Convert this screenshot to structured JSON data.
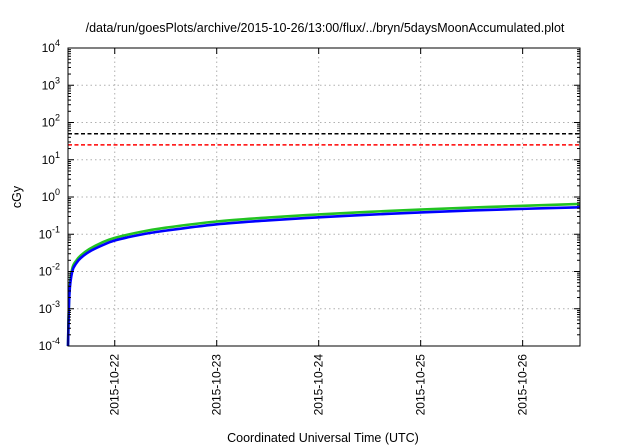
{
  "chart_data": {
    "type": "line",
    "title": "/data/run/goesPlots/archive/2015-10-26/13:00/flux/../bryn/5daysMoonAccumulated.plot",
    "xlabel": "Coordinated Universal Time (UTC)",
    "ylabel": "cGy",
    "yscale": "log",
    "ylim": [
      0.0001,
      10000
    ],
    "xlim": [
      "2015-10-21T13:00",
      "2015-10-26T13:30"
    ],
    "grid": true,
    "y_ticks": [
      {
        "base": "10",
        "exp": "-4",
        "value": 0.0001
      },
      {
        "base": "10",
        "exp": "-3",
        "value": 0.001
      },
      {
        "base": "10",
        "exp": "-2",
        "value": 0.01
      },
      {
        "base": "10",
        "exp": "-1",
        "value": 0.1
      },
      {
        "base": "10",
        "exp": "0",
        "value": 1
      },
      {
        "base": "10",
        "exp": "1",
        "value": 10
      },
      {
        "base": "10",
        "exp": "2",
        "value": 100
      },
      {
        "base": "10",
        "exp": "3",
        "value": 1000
      },
      {
        "base": "10",
        "exp": "4",
        "value": 10000
      }
    ],
    "x_ticks": [
      {
        "label": "2015-10-22",
        "value": "2015-10-22T00:00"
      },
      {
        "label": "2015-10-23",
        "value": "2015-10-23T00:00"
      },
      {
        "label": "2015-10-24",
        "value": "2015-10-24T00:00"
      },
      {
        "label": "2015-10-25",
        "value": "2015-10-25T00:00"
      },
      {
        "label": "2015-10-26",
        "value": "2015-10-26T00:00"
      }
    ],
    "reference_lines": [
      {
        "value": 50,
        "color": "#000000",
        "style": "dashed"
      },
      {
        "value": 25,
        "color": "#ff0000",
        "style": "dashed"
      }
    ],
    "series": [
      {
        "color": "#22c322",
        "x": [
          "2015-10-21T13:00",
          "2015-10-21T13:20",
          "2015-10-21T14:00",
          "2015-10-21T15:00",
          "2015-10-21T16:00",
          "2015-10-21T18:00",
          "2015-10-21T21:00",
          "2015-10-22T00:00",
          "2015-10-22T06:00",
          "2015-10-22T12:00",
          "2015-10-23T00:00",
          "2015-10-23T12:00",
          "2015-10-24T00:00",
          "2015-10-24T12:00",
          "2015-10-25T00:00",
          "2015-10-25T12:00",
          "2015-10-26T00:00",
          "2015-10-26T13:30"
        ],
        "values": [
          0.0001,
          0.003,
          0.012,
          0.02,
          0.027,
          0.04,
          0.06,
          0.08,
          0.115,
          0.15,
          0.22,
          0.28,
          0.34,
          0.4,
          0.46,
          0.52,
          0.58,
          0.65
        ]
      },
      {
        "color": "#0000ff",
        "x": [
          "2015-10-21T13:00",
          "2015-10-21T13:20",
          "2015-10-21T14:00",
          "2015-10-21T15:00",
          "2015-10-21T16:00",
          "2015-10-21T18:00",
          "2015-10-21T21:00",
          "2015-10-22T00:00",
          "2015-10-22T06:00",
          "2015-10-22T12:00",
          "2015-10-23T00:00",
          "2015-10-23T12:00",
          "2015-10-24T00:00",
          "2015-10-24T12:00",
          "2015-10-25T00:00",
          "2015-10-25T12:00",
          "2015-10-26T00:00",
          "2015-10-26T13:30"
        ],
        "values": [
          0.0001,
          0.0025,
          0.01,
          0.017,
          0.023,
          0.034,
          0.05,
          0.068,
          0.097,
          0.125,
          0.185,
          0.235,
          0.285,
          0.335,
          0.385,
          0.435,
          0.48,
          0.53
        ]
      }
    ]
  }
}
